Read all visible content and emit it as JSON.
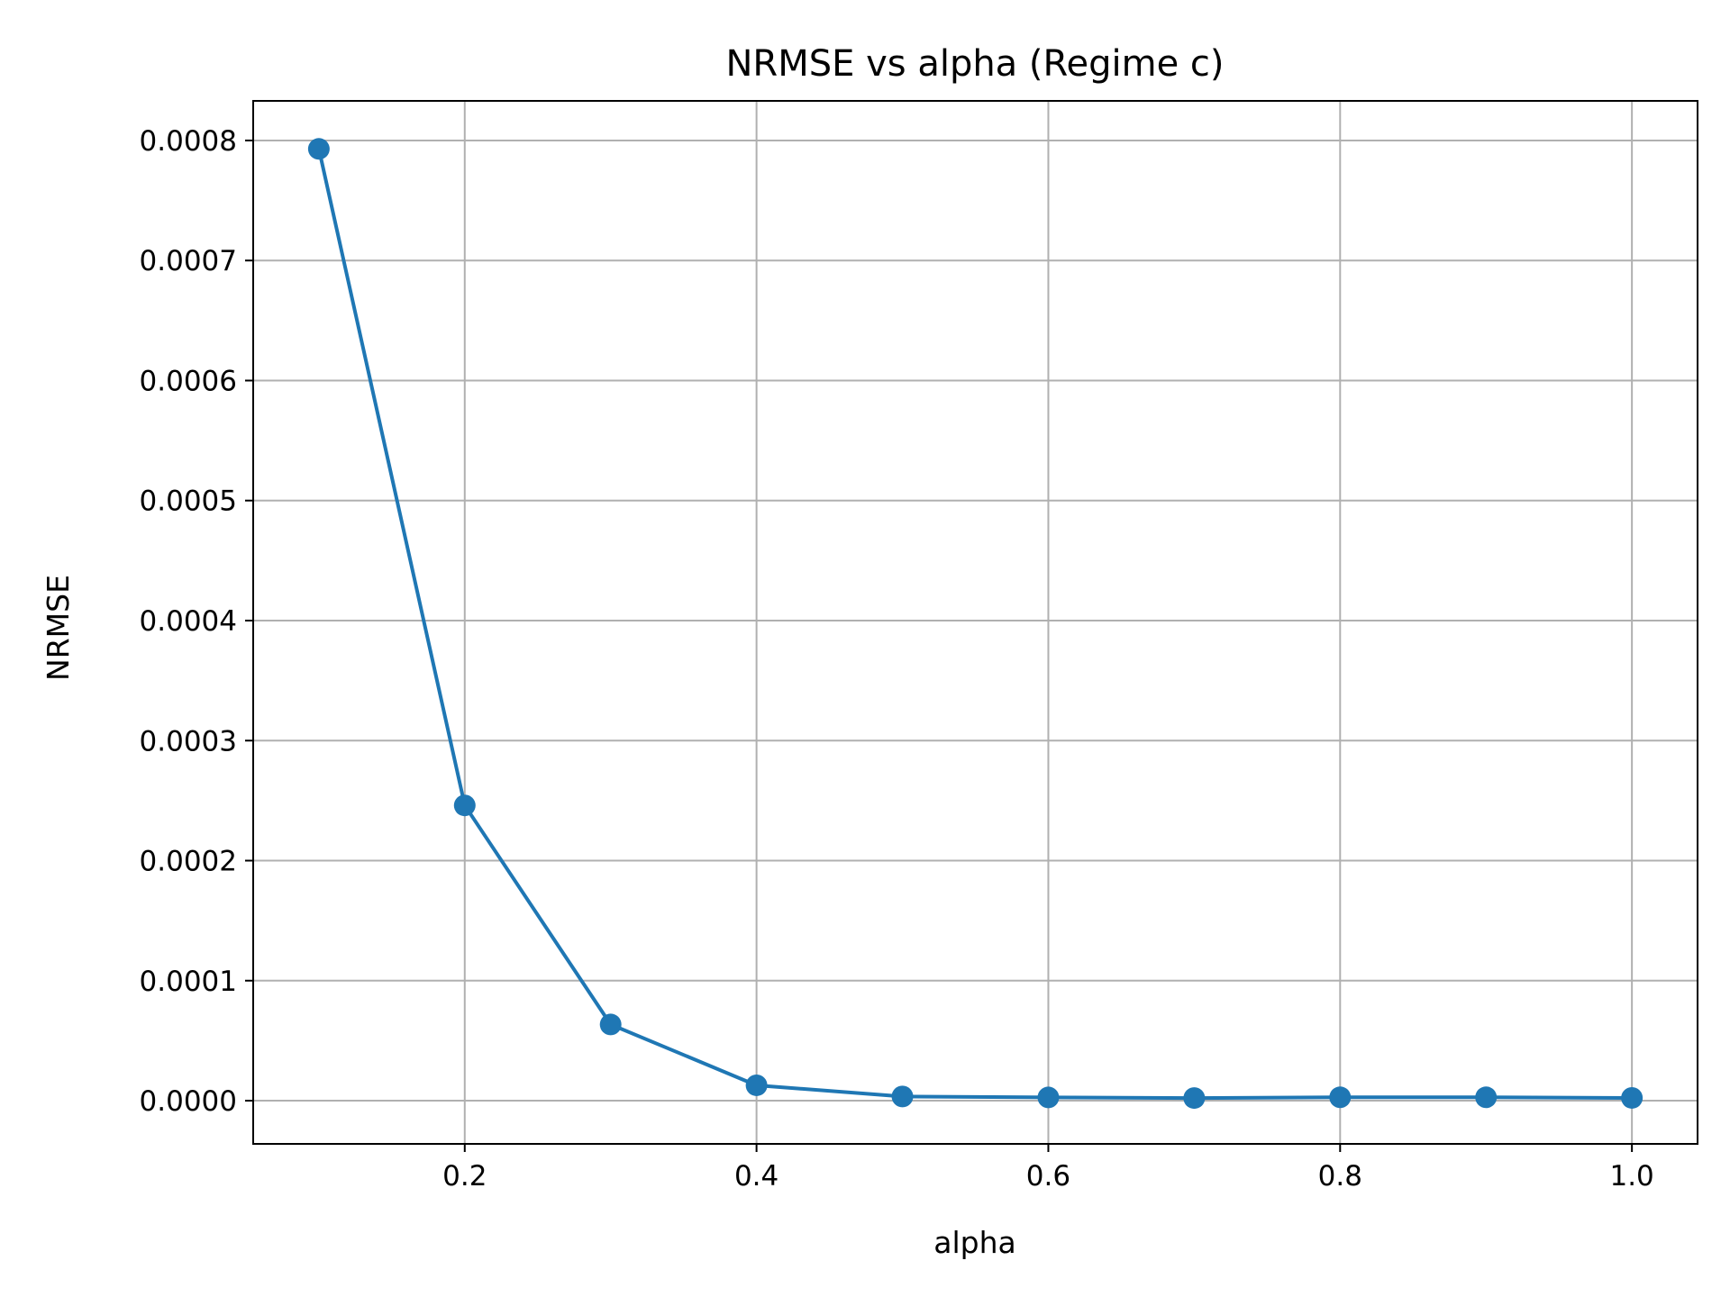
{
  "chart_data": {
    "type": "line",
    "title": "NRMSE vs alpha (Regime c)",
    "xlabel": "alpha",
    "ylabel": "NRMSE",
    "x": [
      0.1,
      0.2,
      0.3,
      0.4,
      0.5,
      0.6,
      0.7,
      0.8,
      0.9,
      1.0
    ],
    "series": [
      {
        "values": [
          0.000793,
          0.000246,
          6.35e-05,
          1.28e-05,
          3.5e-06,
          2.7e-06,
          2.2e-06,
          2.8e-06,
          2.8e-06,
          2.3e-06
        ]
      }
    ],
    "xlim": [
      0.055,
      1.045
    ],
    "ylim": [
      -3.6e-05,
      0.000833
    ],
    "xticks": [
      0.2,
      0.4,
      0.6,
      0.8,
      1.0
    ],
    "xtick_labels": [
      "0.2",
      "0.4",
      "0.6",
      "0.8",
      "1.0"
    ],
    "yticks": [
      0.0,
      0.0001,
      0.0002,
      0.0003,
      0.0004,
      0.0005,
      0.0006,
      0.0007,
      0.0008
    ],
    "ytick_labels": [
      "0.0000",
      "0.0001",
      "0.0002",
      "0.0003",
      "0.0004",
      "0.0005",
      "0.0006",
      "0.0007",
      "0.0008"
    ],
    "grid": true,
    "line_color": "#1f77b4",
    "marker": "circle"
  }
}
